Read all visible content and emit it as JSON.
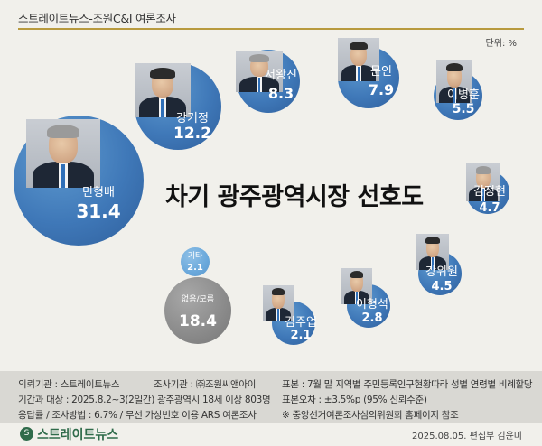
{
  "header": {
    "outlet_line": "스트레이트뉴스-조원C&I 여론조사"
  },
  "unit_label": "단위: %",
  "chart_data": {
    "type": "bubble",
    "title": "차기 광주광역시장 선호도",
    "unit": "%",
    "series": [
      {
        "name": "민형배",
        "value": 31.4
      },
      {
        "name": "강기정",
        "value": 12.2
      },
      {
        "name": "서왕진",
        "value": 8.3
      },
      {
        "name": "문인",
        "value": 7.9
      },
      {
        "name": "이병훈",
        "value": 5.5
      },
      {
        "name": "김정현",
        "value": 4.7
      },
      {
        "name": "강위원",
        "value": 4.5
      },
      {
        "name": "이형석",
        "value": 2.8
      },
      {
        "name": "김주업",
        "value": 2.1
      },
      {
        "name": "기타",
        "value": 2.1
      },
      {
        "name": "없음/모름",
        "value": 18.4
      }
    ]
  },
  "bubbles": [
    {
      "name": "민형배",
      "value": "31.4",
      "style": "blue",
      "photo": "candidate-photo",
      "hair": "gray"
    },
    {
      "name": "강기정",
      "value": "12.2",
      "style": "blue",
      "photo": "candidate-photo",
      "hair": "dark"
    },
    {
      "name": "서왕진",
      "value": "8.3",
      "style": "blue",
      "photo": "candidate-photo",
      "hair": "gray"
    },
    {
      "name": "문인",
      "value": "7.9",
      "style": "blue",
      "photo": "candidate-photo",
      "hair": "dark"
    },
    {
      "name": "이병훈",
      "value": "5.5",
      "style": "blue",
      "photo": "candidate-photo",
      "hair": "dark"
    },
    {
      "name": "김정현",
      "value": "4.7",
      "style": "blue",
      "photo": "candidate-photo",
      "hair": "gray"
    },
    {
      "name": "강위원",
      "value": "4.5",
      "style": "blue",
      "photo": "candidate-photo",
      "hair": "dark"
    },
    {
      "name": "이형석",
      "value": "2.8",
      "style": "blue",
      "photo": "candidate-photo",
      "hair": "dark"
    },
    {
      "name": "김주업",
      "value": "2.1",
      "style": "blue",
      "photo": "candidate-photo",
      "hair": "dark"
    },
    {
      "name": "기타",
      "value": "2.1",
      "style": "lightblue",
      "photo": null
    },
    {
      "name": "없음/모름",
      "value": "18.4",
      "style": "gray",
      "photo": null
    }
  ],
  "footer": {
    "client": "의뢰기관 : 스트레이트뉴스",
    "surveyor": "조사기관 : ㈜조원씨앤아이",
    "period": "기간과 대상 : 2025.8.2~3(2일간) 광주광역시 18세 이상 803명",
    "method": "응답률 / 조사방법 : 6.7% / 무선 가상번호 이용 ARS 여론조사",
    "sample": "표본 : 7월 말 지역별 주민등록인구현황따라 성별 연령별 비례할당",
    "error": "표본오차 : ±3.5%p (95% 신뢰수준)",
    "note": "※ 중앙선거여론조사심의위원회 홈페이지 참조"
  },
  "brand": {
    "logo_mark": "S",
    "logo_text": "스트레이트뉴스"
  },
  "credit": "2025.08.05.  편집부 김윤미",
  "colors": {
    "bubble_blue": "#3f78b8",
    "bubble_gray": "#8a8a8a",
    "bubble_light": "#6aa8db",
    "gold_rule": "#b89a3e",
    "brand_green": "#2f6b4a"
  }
}
